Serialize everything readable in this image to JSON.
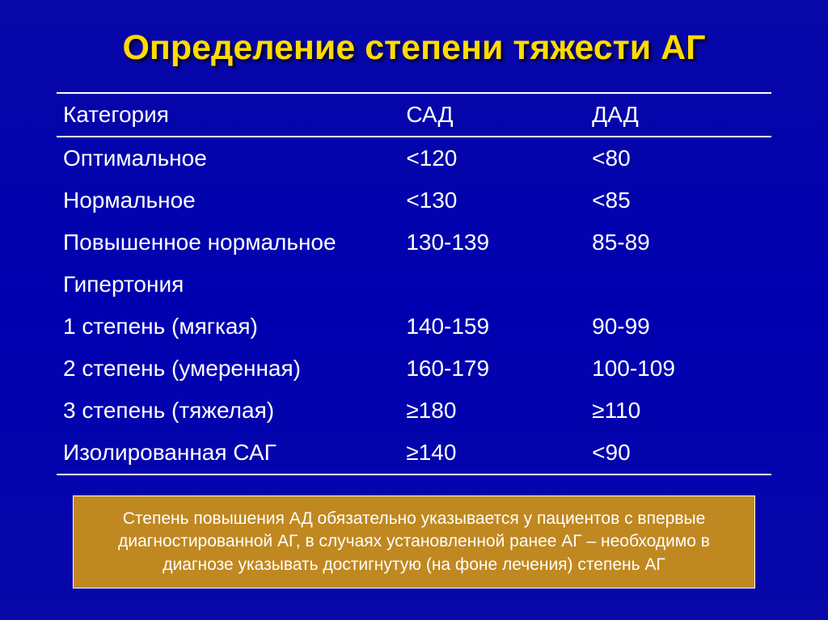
{
  "title": "Определение степени тяжести АГ",
  "table": {
    "headers": {
      "category": "Категория",
      "sad": "САД",
      "dad": "ДАД"
    },
    "rows": [
      {
        "category": "Оптимальное",
        "sad": "<120",
        "dad": "<80"
      },
      {
        "category": "Нормальное",
        "sad": "<130",
        "dad": "<85"
      },
      {
        "category": "Повышенное нормальное",
        "sad": "130-139",
        "dad": "85-89"
      },
      {
        "category": "Гипертония",
        "sad": "",
        "dad": ""
      },
      {
        "category": "1 степень (мягкая)",
        "sad": "140-159",
        "dad": "90-99"
      },
      {
        "category": "2 степень (умеренная)",
        "sad": "160-179",
        "dad": "100-109"
      },
      {
        "category": "3 степень (тяжелая)",
        "sad": "≥180",
        "dad": "≥110"
      },
      {
        "category": "Изолированная САГ",
        "sad": "≥140",
        "dad": "<90"
      }
    ]
  },
  "note": "Степень повышения АД обязательно указывается у пациентов с впервые диагностированной АГ, в случаях установленной ранее АГ – необходимо в диагнозе указывать достигнутую (на фоне лечения) степень АГ",
  "styling": {
    "background_gradient": [
      "#0808a8",
      "#0000b0",
      "#0808a8"
    ],
    "title_color": "#ffdb00",
    "title_fontsize": 43,
    "title_shadow": "3px 3px 4px rgba(0,0,0,0.8)",
    "table_text_color": "#ffffff",
    "table_fontsize": 28,
    "table_border_color": "#ffffff",
    "note_background": "#c08820",
    "note_text_color": "#ffffff",
    "note_fontsize": 21,
    "note_border_color": "#ffffff"
  }
}
